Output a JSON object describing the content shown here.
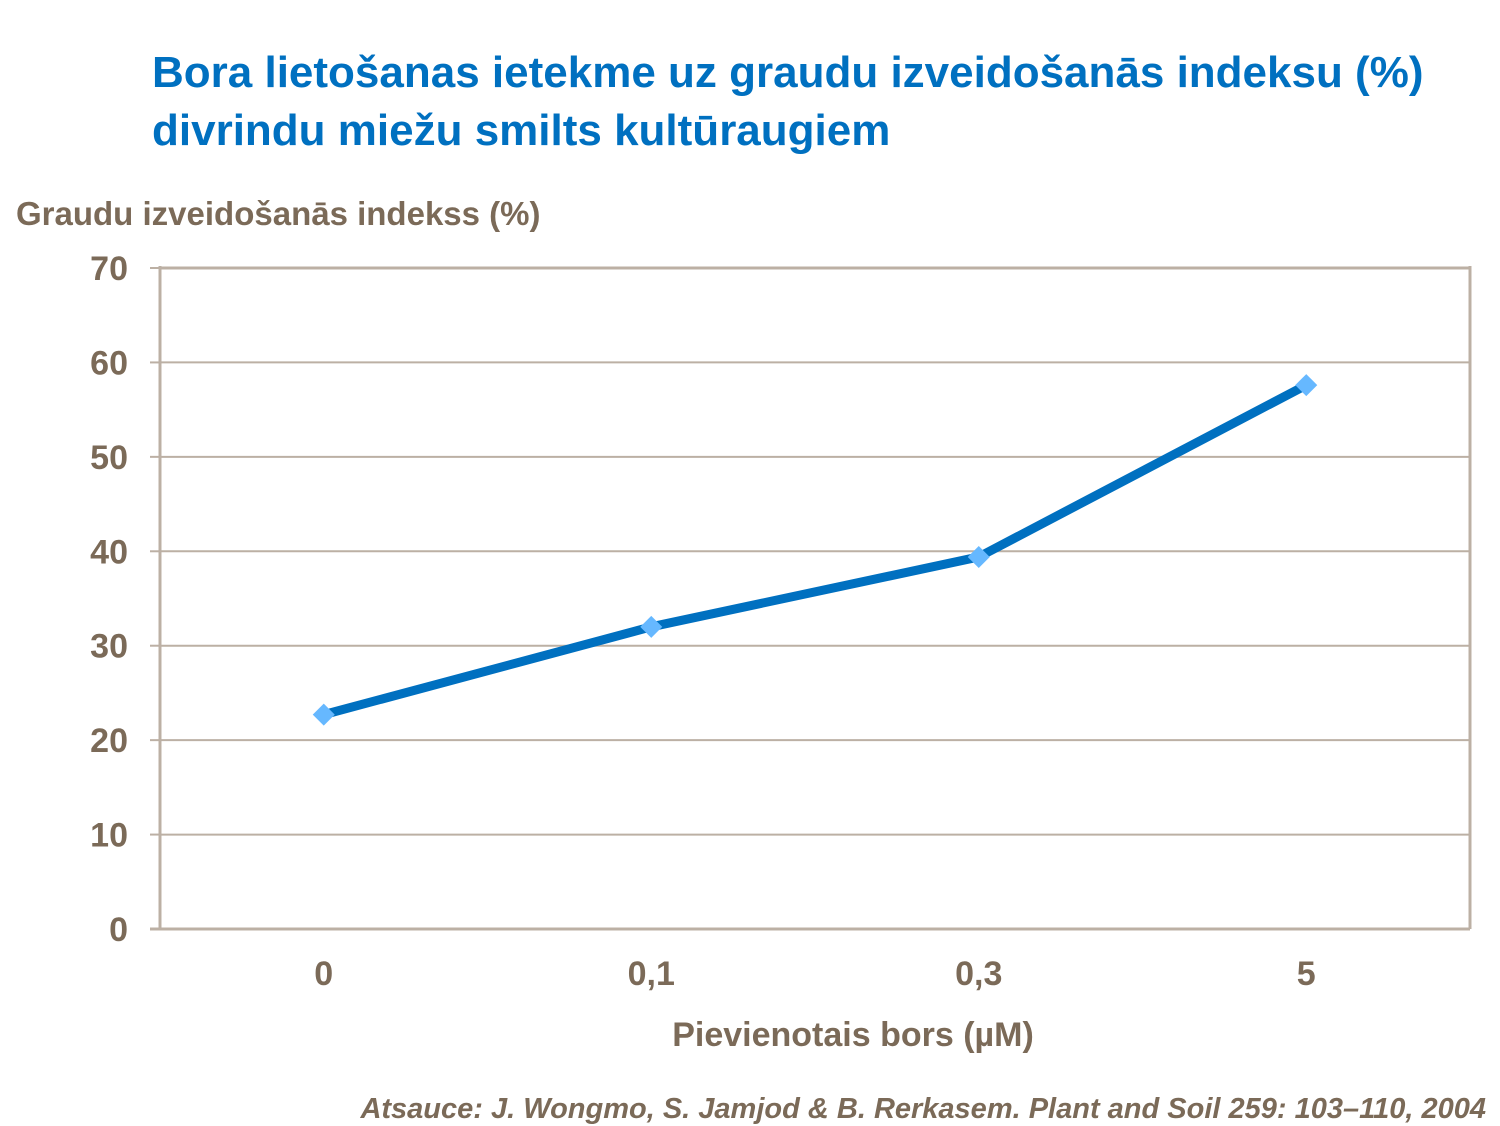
{
  "title": "Bora lietošanas ietekme uz graudu izveidošanās indeksu (%) divrindu miežu smilts kultūraugiem",
  "source": "Atsauce: J. Wongmo, S. Jamjod & B. Rerkasem. Plant and Soil 259: 103–110, 2004",
  "colors": {
    "title": "#0070C0",
    "line": "#0070C0",
    "marker": "#66B8FF",
    "grid": "#BCB0A4",
    "text": "#7B6A58"
  },
  "chart_data": {
    "type": "line",
    "title": "Bora lietošanas ietekme uz graudu izveidošanās indeksu (%) divrindu miežu smilts kultūraugiem",
    "xlabel": "Pievienotais bors (µM)",
    "ylabel": "Graudu izveidošanās indekss (%)",
    "categories": [
      "0",
      "0,1",
      "0,3",
      "5"
    ],
    "series": [
      {
        "values": [
          22.7,
          32.0,
          39.4,
          57.6
        ],
        "marker": "diamond"
      }
    ],
    "ylim": [
      0,
      70
    ],
    "yticks": [
      "0",
      "10",
      "20",
      "30",
      "40",
      "50",
      "60",
      "70"
    ],
    "grid": true,
    "legend": "none"
  }
}
